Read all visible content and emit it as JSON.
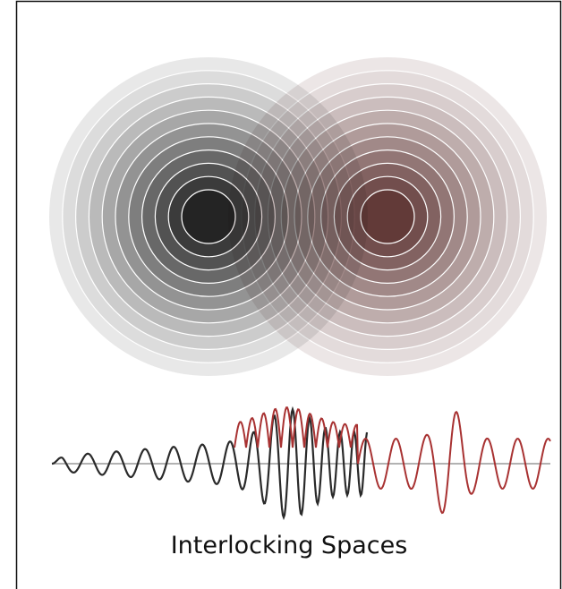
{
  "title": "Interlocking Spaces"
}
